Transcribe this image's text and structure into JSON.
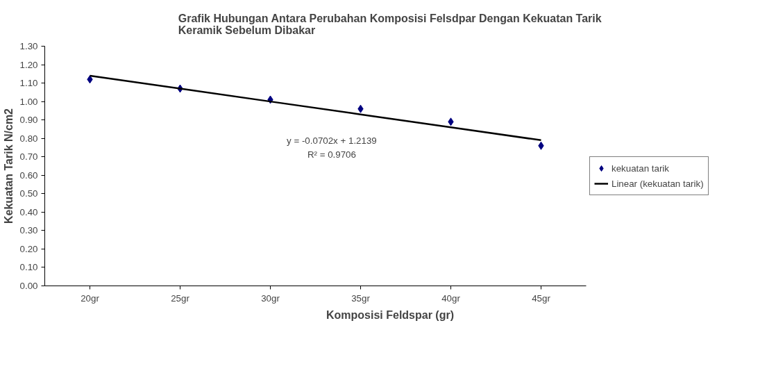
{
  "chart_data": {
    "type": "scatter",
    "title": "Grafik Hubungan Antara Perubahan Komposisi Felsdpar Dengan Kekuatan Tarik\nKeramik Sebelum Dibakar",
    "xlabel": "Komposisi Feldspar (gr)",
    "ylabel": "Kekuatan Tarik N/cm2",
    "categories": [
      "20gr",
      "25gr",
      "30gr",
      "35gr",
      "40gr",
      "45gr"
    ],
    "series": [
      {
        "name": "kekuatan tarik",
        "color": "#000080",
        "marker": "diamond",
        "values": [
          1.12,
          1.07,
          1.01,
          0.96,
          0.89,
          0.76
        ]
      },
      {
        "name": "Linear (kekuatan tarik)",
        "type": "line",
        "color": "#000000",
        "line_style": "solid",
        "values": [
          1.14,
          1.07,
          1.0,
          0.93,
          0.86,
          0.79
        ]
      }
    ],
    "ylim": [
      0,
      1.3
    ],
    "yticks": [
      {
        "value": 0,
        "label": "0.00"
      },
      {
        "value": 0.1,
        "label": "0.10"
      },
      {
        "value": 0.2,
        "label": "0.20"
      },
      {
        "value": 0.3,
        "label": "0.30"
      },
      {
        "value": 0.4,
        "label": "0.40"
      },
      {
        "value": 0.5,
        "label": "0.50"
      },
      {
        "value": 0.6,
        "label": "0.60"
      },
      {
        "value": 0.7,
        "label": "0.70"
      },
      {
        "value": 0.8,
        "label": "0.80"
      },
      {
        "value": 0.9,
        "label": "0.90"
      },
      {
        "value": 1.0,
        "label": "1.00"
      },
      {
        "value": 1.1,
        "label": "1.10"
      },
      {
        "value": 1.2,
        "label": "1.20"
      },
      {
        "value": 1.3,
        "label": "1.30"
      }
    ],
    "annotations": [
      "y = -0.0702x + 1.2139",
      "R² = 0.9706"
    ],
    "grid": false,
    "legend": "right"
  }
}
